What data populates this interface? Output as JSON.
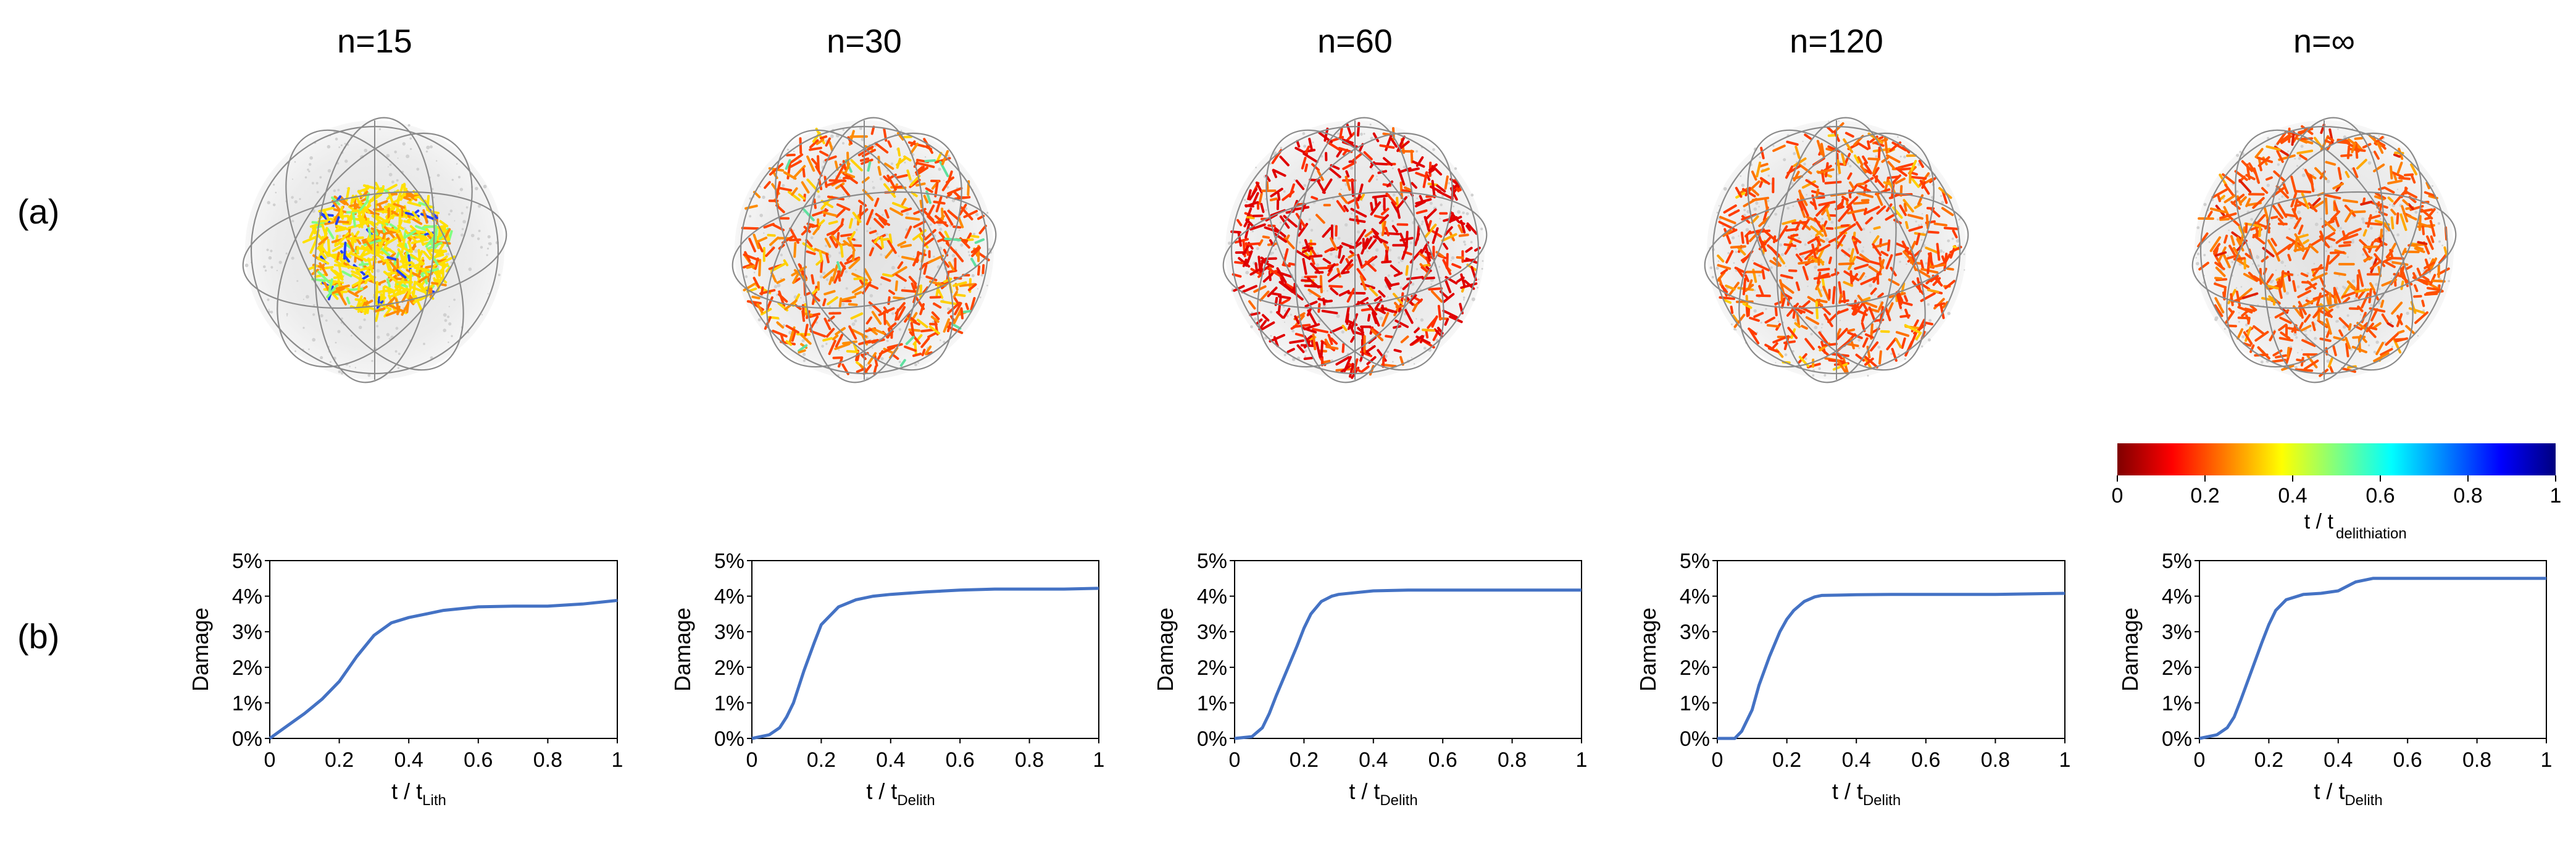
{
  "figure": {
    "row_labels": [
      "(a)",
      "(b)"
    ],
    "colorbar": {
      "label_main": "t / t",
      "label_sub": "delithiation",
      "ticks": [
        "0",
        "0.2",
        "0.4",
        "0.6",
        "0.8",
        "1"
      ],
      "colormap": [
        "#7f0000",
        "#ff0000",
        "#ff8000",
        "#ffff00",
        "#80ff80",
        "#00ffff",
        "#0080ff",
        "#0000ff",
        "#00007f"
      ]
    },
    "particle_panels": [
      {
        "title": "n=15",
        "dominant_colors": [
          "#ffe000",
          "#ff8c00",
          "#80ff80",
          "#2040ff"
        ]
      },
      {
        "title": "n=30",
        "dominant_colors": [
          "#ff4500",
          "#ff8c00",
          "#ffd000",
          "#60e0a0"
        ]
      },
      {
        "title": "n=60",
        "dominant_colors": [
          "#e00000",
          "#ff3000",
          "#ff6a00",
          "#ffb000"
        ]
      },
      {
        "title": "n=120",
        "dominant_colors": [
          "#ff3c00",
          "#ff7000",
          "#ffa000",
          "#ffd000"
        ]
      },
      {
        "title": "n=∞",
        "dominant_colors": [
          "#ff5000",
          "#ff7f00",
          "#ffa800",
          "#e02000"
        ]
      }
    ]
  },
  "chart_data": [
    {
      "type": "line",
      "title": "",
      "ylabel": "Damage",
      "xlabel_main": "t / t",
      "xlabel_sub": "Lith",
      "xlim": [
        0,
        1
      ],
      "ylim": [
        0,
        5
      ],
      "line_color": "#4472c4",
      "xticks": [
        "0",
        "0.2",
        "0.4",
        "0.6",
        "0.8",
        "1"
      ],
      "yticks": [
        "0%",
        "1%",
        "2%",
        "3%",
        "4%",
        "5%"
      ],
      "x": [
        0,
        0.05,
        0.1,
        0.15,
        0.2,
        0.25,
        0.3,
        0.35,
        0.4,
        0.45,
        0.5,
        0.55,
        0.6,
        0.7,
        0.8,
        0.9,
        1.0
      ],
      "y": [
        0,
        0.35,
        0.7,
        1.1,
        1.6,
        2.3,
        2.9,
        3.25,
        3.4,
        3.5,
        3.6,
        3.65,
        3.7,
        3.72,
        3.72,
        3.78,
        3.88
      ]
    },
    {
      "type": "line",
      "title": "",
      "ylabel": "Damage",
      "xlabel_main": "t / t",
      "xlabel_sub": "Delith",
      "xlim": [
        0,
        1
      ],
      "ylim": [
        0,
        5
      ],
      "line_color": "#4472c4",
      "xticks": [
        "0",
        "0.2",
        "0.4",
        "0.6",
        "0.8",
        "1"
      ],
      "yticks": [
        "0%",
        "1%",
        "2%",
        "3%",
        "4%",
        "5%"
      ],
      "x": [
        0,
        0.05,
        0.08,
        0.1,
        0.12,
        0.15,
        0.18,
        0.2,
        0.25,
        0.3,
        0.35,
        0.4,
        0.5,
        0.6,
        0.7,
        0.8,
        0.9,
        1.0
      ],
      "y": [
        0,
        0.1,
        0.3,
        0.6,
        1.0,
        1.9,
        2.7,
        3.2,
        3.7,
        3.9,
        4.0,
        4.05,
        4.12,
        4.17,
        4.2,
        4.2,
        4.2,
        4.22
      ]
    },
    {
      "type": "line",
      "title": "",
      "ylabel": "Damage",
      "xlabel_main": "t / t",
      "xlabel_sub": "Delith",
      "xlim": [
        0,
        1
      ],
      "ylim": [
        0,
        5
      ],
      "line_color": "#4472c4",
      "xticks": [
        "0",
        "0.2",
        "0.4",
        "0.6",
        "0.8",
        "1"
      ],
      "yticks": [
        "0%",
        "1%",
        "2%",
        "3%",
        "4%",
        "5%"
      ],
      "x": [
        0,
        0.05,
        0.08,
        0.1,
        0.12,
        0.15,
        0.18,
        0.2,
        0.22,
        0.25,
        0.28,
        0.3,
        0.35,
        0.4,
        0.5,
        0.6,
        0.8,
        1.0
      ],
      "y": [
        0,
        0.05,
        0.3,
        0.7,
        1.2,
        1.9,
        2.6,
        3.1,
        3.5,
        3.85,
        4.0,
        4.05,
        4.1,
        4.15,
        4.17,
        4.17,
        4.17,
        4.17
      ]
    },
    {
      "type": "line",
      "title": "",
      "ylabel": "Damage",
      "xlabel_main": "t / t",
      "xlabel_sub": "Delith",
      "xlim": [
        0,
        1
      ],
      "ylim": [
        0,
        5
      ],
      "line_color": "#4472c4",
      "xticks": [
        "0",
        "0.2",
        "0.4",
        "0.6",
        "0.8",
        "1"
      ],
      "yticks": [
        "0%",
        "1%",
        "2%",
        "3%",
        "4%",
        "5%"
      ],
      "x": [
        0,
        0.05,
        0.07,
        0.1,
        0.12,
        0.15,
        0.18,
        0.2,
        0.22,
        0.25,
        0.28,
        0.3,
        0.35,
        0.4,
        0.5,
        0.6,
        0.8,
        1.0
      ],
      "y": [
        0,
        0,
        0.2,
        0.8,
        1.5,
        2.3,
        3.0,
        3.35,
        3.6,
        3.85,
        3.98,
        4.02,
        4.03,
        4.04,
        4.05,
        4.05,
        4.05,
        4.08
      ]
    },
    {
      "type": "line",
      "title": "",
      "ylabel": "Damage",
      "xlabel_main": "t / t",
      "xlabel_sub": "Delith",
      "xlim": [
        0,
        1
      ],
      "ylim": [
        0,
        5
      ],
      "line_color": "#4472c4",
      "xticks": [
        "0",
        "0.2",
        "0.4",
        "0.6",
        "0.8",
        "1"
      ],
      "yticks": [
        "0%",
        "1%",
        "2%",
        "3%",
        "4%",
        "5%"
      ],
      "x": [
        0,
        0.05,
        0.08,
        0.1,
        0.12,
        0.15,
        0.18,
        0.2,
        0.22,
        0.25,
        0.3,
        0.35,
        0.4,
        0.45,
        0.5,
        0.6,
        0.8,
        1.0
      ],
      "y": [
        0,
        0.1,
        0.3,
        0.6,
        1.1,
        1.9,
        2.7,
        3.2,
        3.6,
        3.9,
        4.05,
        4.08,
        4.15,
        4.4,
        4.5,
        4.5,
        4.5,
        4.5
      ]
    }
  ]
}
